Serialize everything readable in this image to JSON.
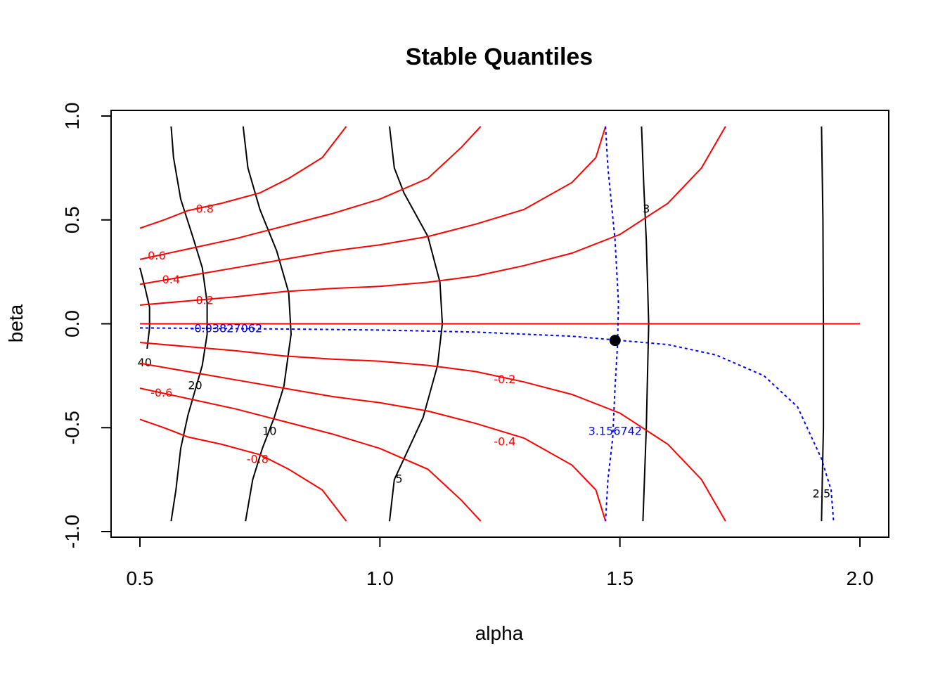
{
  "chart_data": {
    "type": "contour",
    "title": "Stable Quantiles",
    "xlabel": "alpha",
    "ylabel": "beta",
    "xlim": [
      0.5,
      2.0
    ],
    "ylim": [
      -1.0,
      1.0
    ],
    "xticks": [
      0.5,
      1.0,
      1.5,
      2.0
    ],
    "xtick_labels": [
      "0.5",
      "1.0",
      "1.5",
      "2.0"
    ],
    "yticks": [
      -1.0,
      -0.5,
      0.0,
      0.5,
      1.0
    ],
    "ytick_labels": [
      "-1.0",
      "-0.5",
      "0.0",
      "0.5",
      "1.0"
    ],
    "colors": {
      "black": "#000000",
      "red": "#ff0000",
      "blue": "#0000ff"
    },
    "black_contours": [
      {
        "level": "40",
        "label_at": [
          0.51,
          -0.19
        ],
        "points": [
          [
            0.5,
            0.27
          ],
          [
            0.51,
            0.18
          ],
          [
            0.52,
            0.08
          ],
          [
            0.52,
            -0.02
          ],
          [
            0.515,
            -0.12
          ]
        ]
      },
      {
        "level": "20",
        "label_at": [
          0.615,
          -0.3
        ],
        "points": [
          [
            0.565,
            0.95
          ],
          [
            0.57,
            0.8
          ],
          [
            0.585,
            0.6
          ],
          [
            0.61,
            0.42
          ],
          [
            0.63,
            0.27
          ],
          [
            0.64,
            0.1
          ],
          [
            0.64,
            -0.05
          ],
          [
            0.63,
            -0.2
          ],
          [
            0.615,
            -0.32
          ],
          [
            0.6,
            -0.44
          ],
          [
            0.585,
            -0.6
          ],
          [
            0.575,
            -0.8
          ],
          [
            0.565,
            -0.95
          ]
        ]
      },
      {
        "level": "10",
        "label_at": [
          0.77,
          -0.52
        ],
        "points": [
          [
            0.715,
            0.95
          ],
          [
            0.725,
            0.75
          ],
          [
            0.75,
            0.55
          ],
          [
            0.785,
            0.35
          ],
          [
            0.81,
            0.15
          ],
          [
            0.815,
            -0.05
          ],
          [
            0.8,
            -0.3
          ],
          [
            0.78,
            -0.45
          ],
          [
            0.755,
            -0.6
          ],
          [
            0.735,
            -0.75
          ],
          [
            0.72,
            -0.95
          ]
        ]
      },
      {
        "level": "5",
        "label_at": [
          1.04,
          -0.75
        ],
        "points": [
          [
            1.02,
            0.95
          ],
          [
            1.03,
            0.75
          ],
          [
            1.05,
            0.63
          ],
          [
            1.1,
            0.42
          ],
          [
            1.125,
            0.2
          ],
          [
            1.13,
            0.0
          ],
          [
            1.12,
            -0.2
          ],
          [
            1.09,
            -0.45
          ],
          [
            1.05,
            -0.65
          ],
          [
            1.03,
            -0.75
          ],
          [
            1.02,
            -0.95
          ]
        ]
      },
      {
        "level": "3",
        "label_at": [
          1.555,
          0.55
        ],
        "points": [
          [
            1.545,
            0.95
          ],
          [
            1.55,
            0.65
          ],
          [
            1.555,
            0.4
          ],
          [
            1.56,
            0.0
          ],
          [
            1.555,
            -0.5
          ],
          [
            1.548,
            -0.95
          ]
        ]
      },
      {
        "level": "2.5",
        "label_at": [
          1.92,
          -0.82
        ],
        "points": [
          [
            1.92,
            0.95
          ],
          [
            1.923,
            0.5
          ],
          [
            1.924,
            0.0
          ],
          [
            1.924,
            -0.5
          ],
          [
            1.922,
            -0.7
          ],
          [
            1.92,
            -0.95
          ]
        ]
      }
    ],
    "red_contours": [
      {
        "level": "0.8",
        "label_at": [
          0.635,
          0.55
        ],
        "points": [
          [
            0.5,
            0.46
          ],
          [
            0.55,
            0.5
          ],
          [
            0.6,
            0.545
          ],
          [
            0.67,
            0.58
          ],
          [
            0.75,
            0.63
          ],
          [
            0.81,
            0.7
          ],
          [
            0.88,
            0.8
          ],
          [
            0.92,
            0.92
          ],
          [
            0.93,
            0.95
          ]
        ]
      },
      {
        "level": "0.6",
        "label_at": [
          0.535,
          0.325
        ],
        "points": [
          [
            0.5,
            0.31
          ],
          [
            0.6,
            0.36
          ],
          [
            0.7,
            0.41
          ],
          [
            0.8,
            0.47
          ],
          [
            0.9,
            0.53
          ],
          [
            1.0,
            0.6
          ],
          [
            1.1,
            0.7
          ],
          [
            1.17,
            0.85
          ],
          [
            1.21,
            0.95
          ]
        ]
      },
      {
        "level": "0.4",
        "label_at": [
          0.565,
          0.21
        ],
        "points": [
          [
            0.5,
            0.19
          ],
          [
            0.6,
            0.23
          ],
          [
            0.7,
            0.27
          ],
          [
            0.8,
            0.31
          ],
          [
            0.9,
            0.35
          ],
          [
            1.0,
            0.38
          ],
          [
            1.1,
            0.42
          ],
          [
            1.2,
            0.48
          ],
          [
            1.3,
            0.55
          ],
          [
            1.4,
            0.68
          ],
          [
            1.45,
            0.8
          ],
          [
            1.47,
            0.95
          ]
        ]
      },
      {
        "level": "0.2",
        "label_at": [
          0.635,
          0.11
        ],
        "points": [
          [
            0.5,
            0.09
          ],
          [
            0.6,
            0.11
          ],
          [
            0.7,
            0.13
          ],
          [
            0.8,
            0.155
          ],
          [
            0.9,
            0.17
          ],
          [
            1.0,
            0.18
          ],
          [
            1.1,
            0.2
          ],
          [
            1.2,
            0.23
          ],
          [
            1.3,
            0.28
          ],
          [
            1.4,
            0.34
          ],
          [
            1.5,
            0.43
          ],
          [
            1.6,
            0.58
          ],
          [
            1.67,
            0.75
          ],
          [
            1.72,
            0.95
          ]
        ]
      },
      {
        "level": "0",
        "label_at": null,
        "points": [
          [
            0.5,
            0.0
          ],
          [
            2.0,
            0.0
          ]
        ]
      },
      {
        "level": "-0.2",
        "label_at": [
          1.26,
          -0.27
        ],
        "points": [
          [
            0.5,
            -0.09
          ],
          [
            0.6,
            -0.11
          ],
          [
            0.7,
            -0.13
          ],
          [
            0.8,
            -0.155
          ],
          [
            0.9,
            -0.17
          ],
          [
            1.0,
            -0.18
          ],
          [
            1.1,
            -0.2
          ],
          [
            1.2,
            -0.23
          ],
          [
            1.3,
            -0.28
          ],
          [
            1.4,
            -0.34
          ],
          [
            1.5,
            -0.43
          ],
          [
            1.6,
            -0.58
          ],
          [
            1.67,
            -0.75
          ],
          [
            1.72,
            -0.95
          ]
        ]
      },
      {
        "level": "-0.4",
        "label_at": [
          1.26,
          -0.57
        ],
        "points": [
          [
            0.5,
            -0.19
          ],
          [
            0.6,
            -0.23
          ],
          [
            0.7,
            -0.27
          ],
          [
            0.8,
            -0.31
          ],
          [
            0.9,
            -0.35
          ],
          [
            1.0,
            -0.38
          ],
          [
            1.1,
            -0.42
          ],
          [
            1.2,
            -0.48
          ],
          [
            1.3,
            -0.55
          ],
          [
            1.4,
            -0.68
          ],
          [
            1.45,
            -0.8
          ],
          [
            1.47,
            -0.95
          ]
        ]
      },
      {
        "level": "-0.6",
        "label_at": [
          0.545,
          -0.335
        ],
        "points": [
          [
            0.5,
            -0.31
          ],
          [
            0.6,
            -0.36
          ],
          [
            0.7,
            -0.41
          ],
          [
            0.8,
            -0.47
          ],
          [
            0.9,
            -0.53
          ],
          [
            1.0,
            -0.6
          ],
          [
            1.1,
            -0.7
          ],
          [
            1.17,
            -0.85
          ],
          [
            1.21,
            -0.95
          ]
        ]
      },
      {
        "level": "-0.8",
        "label_at": [
          0.745,
          -0.655
        ],
        "points": [
          [
            0.5,
            -0.46
          ],
          [
            0.55,
            -0.5
          ],
          [
            0.6,
            -0.545
          ],
          [
            0.67,
            -0.58
          ],
          [
            0.75,
            -0.63
          ],
          [
            0.81,
            -0.7
          ],
          [
            0.88,
            -0.8
          ],
          [
            0.92,
            -0.92
          ],
          [
            0.93,
            -0.95
          ]
        ]
      }
    ],
    "blue_contours": [
      {
        "level": "-0.03827062",
        "label_at": [
          0.68,
          -0.025
        ],
        "points": [
          [
            0.5,
            -0.02
          ],
          [
            0.8,
            -0.025
          ],
          [
            1.0,
            -0.03
          ],
          [
            1.2,
            -0.04
          ],
          [
            1.4,
            -0.06
          ],
          [
            1.5,
            -0.08
          ],
          [
            1.6,
            -0.1
          ],
          [
            1.7,
            -0.15
          ],
          [
            1.8,
            -0.25
          ],
          [
            1.87,
            -0.4
          ],
          [
            1.92,
            -0.65
          ],
          [
            1.94,
            -0.8
          ],
          [
            1.945,
            -0.95
          ]
        ]
      },
      {
        "level": "3.156742",
        "label_at": [
          1.49,
          -0.52
        ],
        "points": [
          [
            1.47,
            0.95
          ],
          [
            1.475,
            0.75
          ],
          [
            1.49,
            0.4
          ],
          [
            1.497,
            0.1
          ],
          [
            1.495,
            -0.1
          ],
          [
            1.49,
            -0.3
          ],
          [
            1.485,
            -0.55
          ],
          [
            1.475,
            -0.75
          ],
          [
            1.47,
            -0.95
          ]
        ]
      }
    ],
    "point": {
      "x": 1.49,
      "y": -0.08
    },
    "grid": false,
    "legend": "none"
  }
}
